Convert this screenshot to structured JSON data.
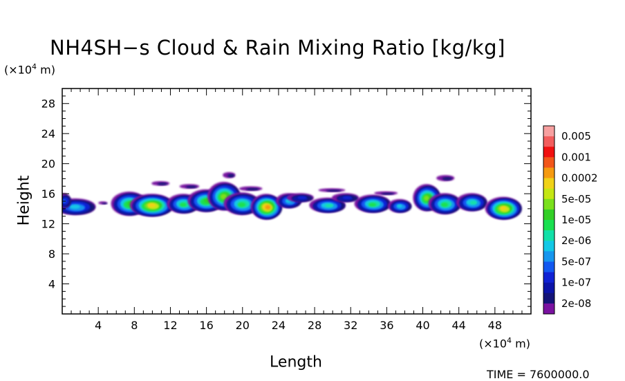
{
  "chart_data": {
    "type": "heatmap",
    "title": "NH4SH−s Cloud & Rain Mixing Ratio [kg/kg]",
    "xlabel": "Length",
    "ylabel": "Height",
    "x_unit_label": "(×10",
    "x_unit_exp": "4",
    "x_unit_suffix": " m)",
    "y_unit_label": "(×10",
    "y_unit_exp": "4",
    "y_unit_suffix": " m)",
    "xlim": [
      0,
      52
    ],
    "ylim": [
      0,
      30
    ],
    "xticks": [
      4,
      8,
      12,
      16,
      20,
      24,
      28,
      32,
      36,
      40,
      44,
      48
    ],
    "yticks": [
      4,
      8,
      12,
      16,
      20,
      24,
      28
    ],
    "colorbar": {
      "labels": [
        "0.005",
        "0.001",
        "0.0002",
        "5e-05",
        "1e-05",
        "2e-06",
        "5e-07",
        "1e-07",
        "2e-08"
      ],
      "colors": [
        "#f7a0a0",
        "#f25d5d",
        "#f01010",
        "#f2561a",
        "#f59a10",
        "#f0d218",
        "#c4e614",
        "#7ae01c",
        "#32cf26",
        "#1ae050",
        "#12e0a8",
        "#12c8e6",
        "#1696ee",
        "#1258f0",
        "#1022d4",
        "#0c14a8",
        "#141478",
        "#7a12a0"
      ]
    },
    "clouds": [
      {
        "x": 1.5,
        "y": 14.2,
        "w": 4.6,
        "h": 2.2,
        "peak": 0.45
      },
      {
        "x": 7.5,
        "y": 14.6,
        "w": 4.0,
        "h": 3.2,
        "peak": 0.7
      },
      {
        "x": 10.0,
        "y": 14.4,
        "w": 4.8,
        "h": 3.0,
        "peak": 0.9
      },
      {
        "x": 13.5,
        "y": 14.6,
        "w": 3.6,
        "h": 2.6,
        "peak": 0.6
      },
      {
        "x": 16.0,
        "y": 15.0,
        "w": 4.0,
        "h": 3.0,
        "peak": 0.7
      },
      {
        "x": 18.0,
        "y": 15.6,
        "w": 3.6,
        "h": 3.8,
        "peak": 0.75
      },
      {
        "x": 20.0,
        "y": 14.6,
        "w": 4.0,
        "h": 3.0,
        "peak": 0.65
      },
      {
        "x": 22.7,
        "y": 14.2,
        "w": 3.4,
        "h": 3.4,
        "peak": 1.0
      },
      {
        "x": 25.2,
        "y": 15.0,
        "w": 2.8,
        "h": 2.0,
        "peak": 0.45
      },
      {
        "x": 29.5,
        "y": 14.4,
        "w": 4.0,
        "h": 2.0,
        "peak": 0.55
      },
      {
        "x": 34.5,
        "y": 14.6,
        "w": 4.0,
        "h": 2.4,
        "peak": 0.6
      },
      {
        "x": 37.5,
        "y": 14.3,
        "w": 2.6,
        "h": 1.8,
        "peak": 0.45
      },
      {
        "x": 40.5,
        "y": 15.4,
        "w": 3.0,
        "h": 3.6,
        "peak": 0.8
      },
      {
        "x": 42.5,
        "y": 14.6,
        "w": 3.6,
        "h": 2.8,
        "peak": 0.6
      },
      {
        "x": 45.5,
        "y": 14.8,
        "w": 3.4,
        "h": 2.4,
        "peak": 0.55
      },
      {
        "x": 49.0,
        "y": 14.0,
        "w": 4.0,
        "h": 3.0,
        "peak": 0.9
      },
      {
        "x": 0.3,
        "y": 15.0,
        "w": 1.4,
        "h": 2.0,
        "peak": 0.3
      },
      {
        "x": 26.5,
        "y": 15.4,
        "w": 3.0,
        "h": 1.2,
        "peak": 0.2
      },
      {
        "x": 31.5,
        "y": 15.4,
        "w": 3.0,
        "h": 1.2,
        "peak": 0.22
      }
    ],
    "wisps": [
      {
        "x": 11.0,
        "y": 17.3,
        "w": 2.0,
        "h": 0.6
      },
      {
        "x": 14.2,
        "y": 16.9,
        "w": 2.2,
        "h": 0.6
      },
      {
        "x": 21.0,
        "y": 16.6,
        "w": 2.6,
        "h": 0.6
      },
      {
        "x": 18.6,
        "y": 18.4,
        "w": 1.4,
        "h": 0.8
      },
      {
        "x": 30.0,
        "y": 16.4,
        "w": 3.0,
        "h": 0.5
      },
      {
        "x": 36.0,
        "y": 16.0,
        "w": 2.6,
        "h": 0.5
      },
      {
        "x": 42.6,
        "y": 18.0,
        "w": 2.0,
        "h": 0.8
      },
      {
        "x": 4.6,
        "y": 14.7,
        "w": 1.0,
        "h": 0.4
      }
    ]
  },
  "time_label": "TIME = 7600000.0"
}
